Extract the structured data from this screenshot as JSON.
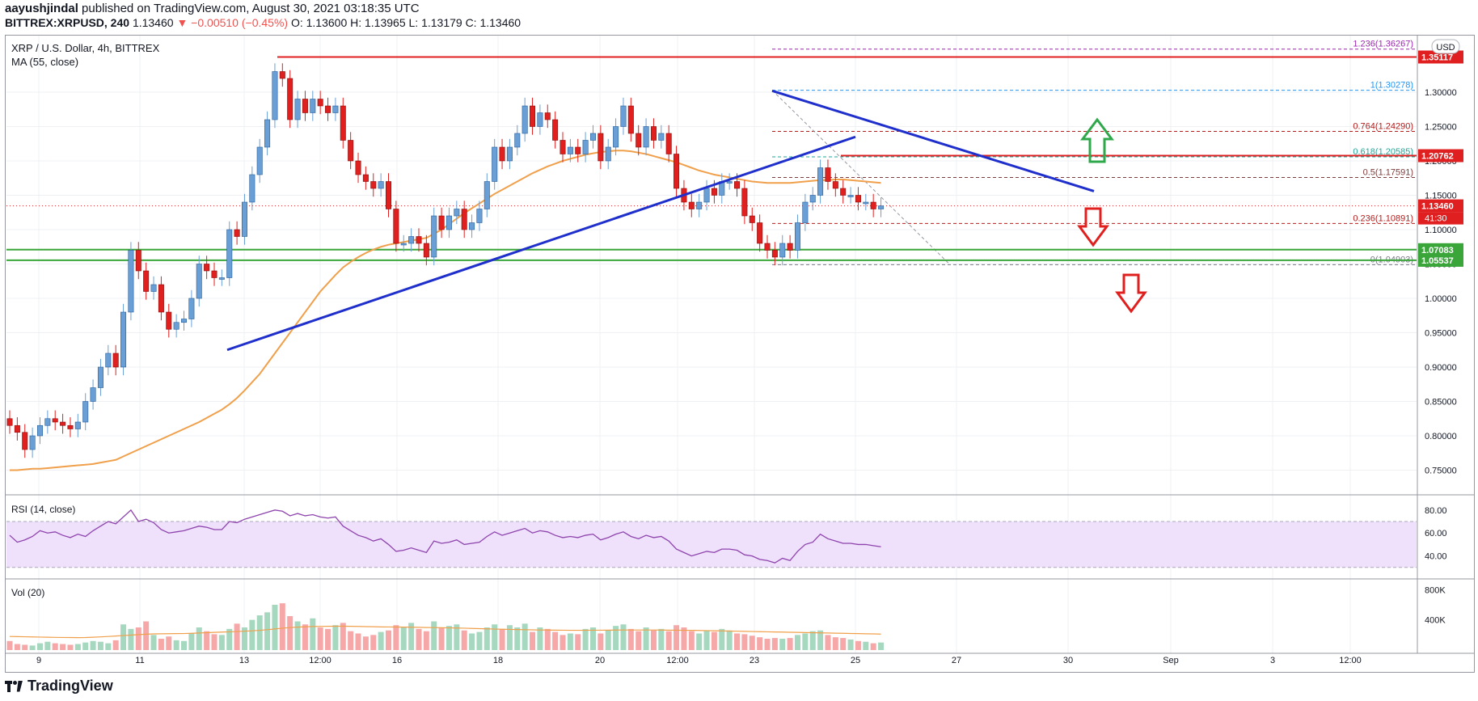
{
  "header": {
    "author": "aayushjindal",
    "published_text": "published on TradingView.com, August 30, 2021 03:18:35 UTC",
    "symbol": "BITTREX:XRPUSD, 240",
    "price": "1.13460",
    "change": "▼ −0.00510 (−0.45%)",
    "ohlc": "O: 1.13600 H: 1.13965 L: 1.13179 C: 1.13460"
  },
  "legend": {
    "title": "XRP / U.S. Dollar, 4h, BITTREX",
    "ma": "MA (55, close)",
    "currency_badge": "USD",
    "rsi": "RSI (14, close)",
    "vol": "Vol (20)"
  },
  "footer": {
    "brand": "TradingView"
  },
  "colors": {
    "up": "#6a9fd6",
    "down": "#e0201f",
    "ma": "#f0a04b",
    "trend": "#1f2fcc",
    "resistance": "#e02020",
    "support": "#3aa63a",
    "rsi_line": "#8e44ad",
    "rsi_band": "#efe0fb",
    "vol_up": "#a6d8bf",
    "vol_down": "#f6a8a8",
    "arrow_up": "#2ea84a",
    "arrow_down": "#e0201f"
  },
  "chart_data": {
    "type": "candlestick",
    "title": "XRP / U.S. Dollar, 4h, BITTREX",
    "ylim": [
      0.7,
      1.38
    ],
    "y_ticks": [
      "1.30000",
      "1.25000",
      "1.20000",
      "1.15000",
      "1.10000",
      "1.05000",
      "1.00000",
      "0.95000",
      "0.90000",
      "0.85000",
      "0.80000",
      "0.75000"
    ],
    "x_ticks": [
      "9",
      "11",
      "13",
      "12:00",
      "16",
      "18",
      "20",
      "12:00",
      "23",
      "25",
      "27",
      "30",
      "Sep",
      "3",
      "12:00"
    ],
    "close_series": [
      0.815,
      0.805,
      0.78,
      0.8,
      0.815,
      0.825,
      0.82,
      0.815,
      0.81,
      0.82,
      0.85,
      0.87,
      0.9,
      0.92,
      0.9,
      0.98,
      1.07,
      1.04,
      1.01,
      1.02,
      0.98,
      0.955,
      0.965,
      0.97,
      1.0,
      1.05,
      1.04,
      1.03,
      1.03,
      1.1,
      1.09,
      1.14,
      1.18,
      1.22,
      1.26,
      1.33,
      1.32,
      1.26,
      1.29,
      1.27,
      1.29,
      1.28,
      1.27,
      1.28,
      1.23,
      1.2,
      1.18,
      1.17,
      1.16,
      1.17,
      1.13,
      1.08,
      1.08,
      1.09,
      1.08,
      1.06,
      1.12,
      1.1,
      1.12,
      1.13,
      1.1,
      1.11,
      1.13,
      1.17,
      1.22,
      1.2,
      1.22,
      1.24,
      1.28,
      1.25,
      1.27,
      1.26,
      1.23,
      1.21,
      1.22,
      1.21,
      1.23,
      1.24,
      1.2,
      1.22,
      1.25,
      1.28,
      1.24,
      1.22,
      1.25,
      1.23,
      1.24,
      1.21,
      1.16,
      1.14,
      1.13,
      1.14,
      1.16,
      1.15,
      1.17,
      1.17,
      1.16,
      1.12,
      1.11,
      1.08,
      1.07,
      1.06,
      1.08,
      1.07,
      1.11,
      1.14,
      1.15,
      1.19,
      1.17,
      1.16,
      1.15,
      1.15,
      1.14,
      1.14,
      1.13,
      1.1346
    ],
    "ma55": [
      0.75,
      0.75,
      0.751,
      0.752,
      0.752,
      0.753,
      0.754,
      0.755,
      0.756,
      0.757,
      0.758,
      0.759,
      0.761,
      0.763,
      0.765,
      0.77,
      0.775,
      0.78,
      0.785,
      0.79,
      0.795,
      0.8,
      0.805,
      0.81,
      0.815,
      0.82,
      0.826,
      0.832,
      0.838,
      0.846,
      0.855,
      0.866,
      0.878,
      0.89,
      0.905,
      0.92,
      0.935,
      0.95,
      0.965,
      0.98,
      0.995,
      1.01,
      1.022,
      1.034,
      1.045,
      1.053,
      1.06,
      1.066,
      1.071,
      1.075,
      1.078,
      1.08,
      1.082,
      1.084,
      1.086,
      1.088,
      1.094,
      1.1,
      1.108,
      1.116,
      1.124,
      1.131,
      1.138,
      1.145,
      1.152,
      1.158,
      1.164,
      1.17,
      1.176,
      1.182,
      1.187,
      1.192,
      1.196,
      1.2,
      1.203,
      1.206,
      1.209,
      1.211,
      1.213,
      1.214,
      1.215,
      1.215,
      1.214,
      1.212,
      1.21,
      1.207,
      1.204,
      1.201,
      1.198,
      1.194,
      1.19,
      1.186,
      1.183,
      1.18,
      1.178,
      1.176,
      1.174,
      1.172,
      1.17,
      1.169,
      1.168,
      1.168,
      1.168,
      1.168,
      1.169,
      1.17,
      1.171,
      1.172,
      1.172,
      1.173,
      1.173,
      1.172,
      1.171,
      1.17,
      1.169,
      1.168
    ],
    "price_labels": [
      {
        "value": 1.35117,
        "text": "1.35117",
        "color": "#e02020"
      },
      {
        "value": 1.20762,
        "text": "1.20762",
        "color": "#e02020"
      },
      {
        "value": 1.1346,
        "text": "1.13460",
        "color": "#e02020"
      },
      {
        "value": 1.07083,
        "text": "1.07083",
        "color": "#3aa63a"
      },
      {
        "value": 1.05537,
        "text": "1.05537",
        "color": "#3aa63a"
      }
    ],
    "countdown": "41:30",
    "fib_levels": [
      {
        "ratio": "1.236",
        "value": 1.36267,
        "color": "#9c27b0",
        "text": "1.236(1.36267)"
      },
      {
        "ratio": "1",
        "value": 1.30278,
        "color": "#2196f3",
        "text": "1(1.30278)"
      },
      {
        "ratio": "0.764",
        "value": 1.2429,
        "color": "#b71c1c",
        "text": "0.764(1.24290)"
      },
      {
        "ratio": "0.618",
        "value": 1.20585,
        "color": "#26a69a",
        "text": "0.618(1.20585)"
      },
      {
        "ratio": "0.5",
        "value": 1.17591,
        "color": "#7f3b3b",
        "text": "0.5(1.17591)"
      },
      {
        "ratio": "0.236",
        "value": 1.10891,
        "color": "#b71c1c",
        "text": "0.236(1.10891)"
      },
      {
        "ratio": "0",
        "value": 1.04903,
        "color": "#787b86",
        "text": "0(1.04903)"
      }
    ],
    "rsi": {
      "ylim": [
        25,
        90
      ],
      "ticks": [
        "80.00",
        "60.00",
        "40.00"
      ],
      "band": [
        30,
        70
      ],
      "values": [
        58,
        52,
        54,
        57,
        62,
        60,
        61,
        58,
        56,
        59,
        57,
        62,
        66,
        70,
        68,
        74,
        80,
        70,
        72,
        69,
        63,
        60,
        61,
        62,
        64,
        66,
        65,
        63,
        63,
        70,
        69,
        72,
        74,
        76,
        78,
        80,
        79,
        75,
        77,
        75,
        76,
        74,
        73,
        74,
        66,
        62,
        58,
        56,
        53,
        55,
        50,
        44,
        45,
        47,
        45,
        43,
        53,
        51,
        52,
        54,
        50,
        51,
        52,
        57,
        61,
        58,
        60,
        62,
        64,
        60,
        62,
        61,
        58,
        56,
        57,
        56,
        58,
        59,
        54,
        56,
        59,
        61,
        57,
        55,
        58,
        56,
        57,
        53,
        46,
        43,
        40,
        42,
        44,
        43,
        46,
        46,
        45,
        41,
        40,
        37,
        36,
        34,
        38,
        36,
        44,
        50,
        52,
        59,
        55,
        53,
        51,
        51,
        50,
        50,
        49,
        48
      ]
    },
    "volume": {
      "ylim": [
        0,
        900
      ],
      "ticks": [
        "800K",
        "400K"
      ],
      "values": [
        120,
        80,
        70,
        60,
        90,
        110,
        90,
        80,
        70,
        80,
        100,
        120,
        110,
        90,
        130,
        340,
        280,
        300,
        380,
        200,
        150,
        180,
        130,
        120,
        220,
        300,
        250,
        210,
        200,
        280,
        350,
        300,
        400,
        460,
        500,
        600,
        620,
        450,
        380,
        340,
        420,
        300,
        280,
        330,
        360,
        250,
        220,
        180,
        200,
        240,
        260,
        330,
        300,
        360,
        280,
        250,
        380,
        300,
        320,
        340,
        260,
        220,
        240,
        300,
        340,
        280,
        330,
        300,
        350,
        240,
        300,
        280,
        240,
        200,
        220,
        210,
        280,
        300,
        220,
        260,
        320,
        340,
        280,
        250,
        300,
        260,
        280,
        250,
        330,
        300,
        250,
        220,
        260,
        240,
        280,
        260,
        220,
        210,
        190,
        170,
        150,
        160,
        150,
        160,
        200,
        220,
        250,
        260,
        200,
        170,
        160,
        140,
        120,
        110,
        90,
        100
      ],
      "ma": [
        180,
        178,
        176,
        174,
        172,
        170,
        168,
        167,
        166,
        165,
        166,
        170,
        175,
        180,
        186,
        192,
        198,
        205,
        210,
        214,
        216,
        217,
        218,
        219,
        222,
        226,
        230,
        234,
        238,
        242,
        246,
        250,
        255,
        262,
        270,
        280,
        290,
        298,
        304,
        308,
        312,
        314,
        315,
        316,
        316,
        315,
        313,
        311,
        309,
        307,
        306,
        305,
        304,
        303,
        301,
        299,
        298,
        296,
        294,
        292,
        290,
        287,
        284,
        281,
        278,
        276,
        274,
        272,
        270,
        268,
        266,
        265,
        264,
        263,
        262,
        262,
        262,
        263,
        263,
        264,
        265,
        266,
        266,
        266,
        266,
        266,
        265,
        264,
        263,
        262,
        261,
        260,
        258,
        256,
        254,
        252,
        250,
        248,
        246,
        244,
        242,
        240,
        238,
        236,
        234,
        232,
        230,
        228,
        226,
        224,
        222,
        220,
        218,
        216,
        214,
        212
      ]
    }
  }
}
